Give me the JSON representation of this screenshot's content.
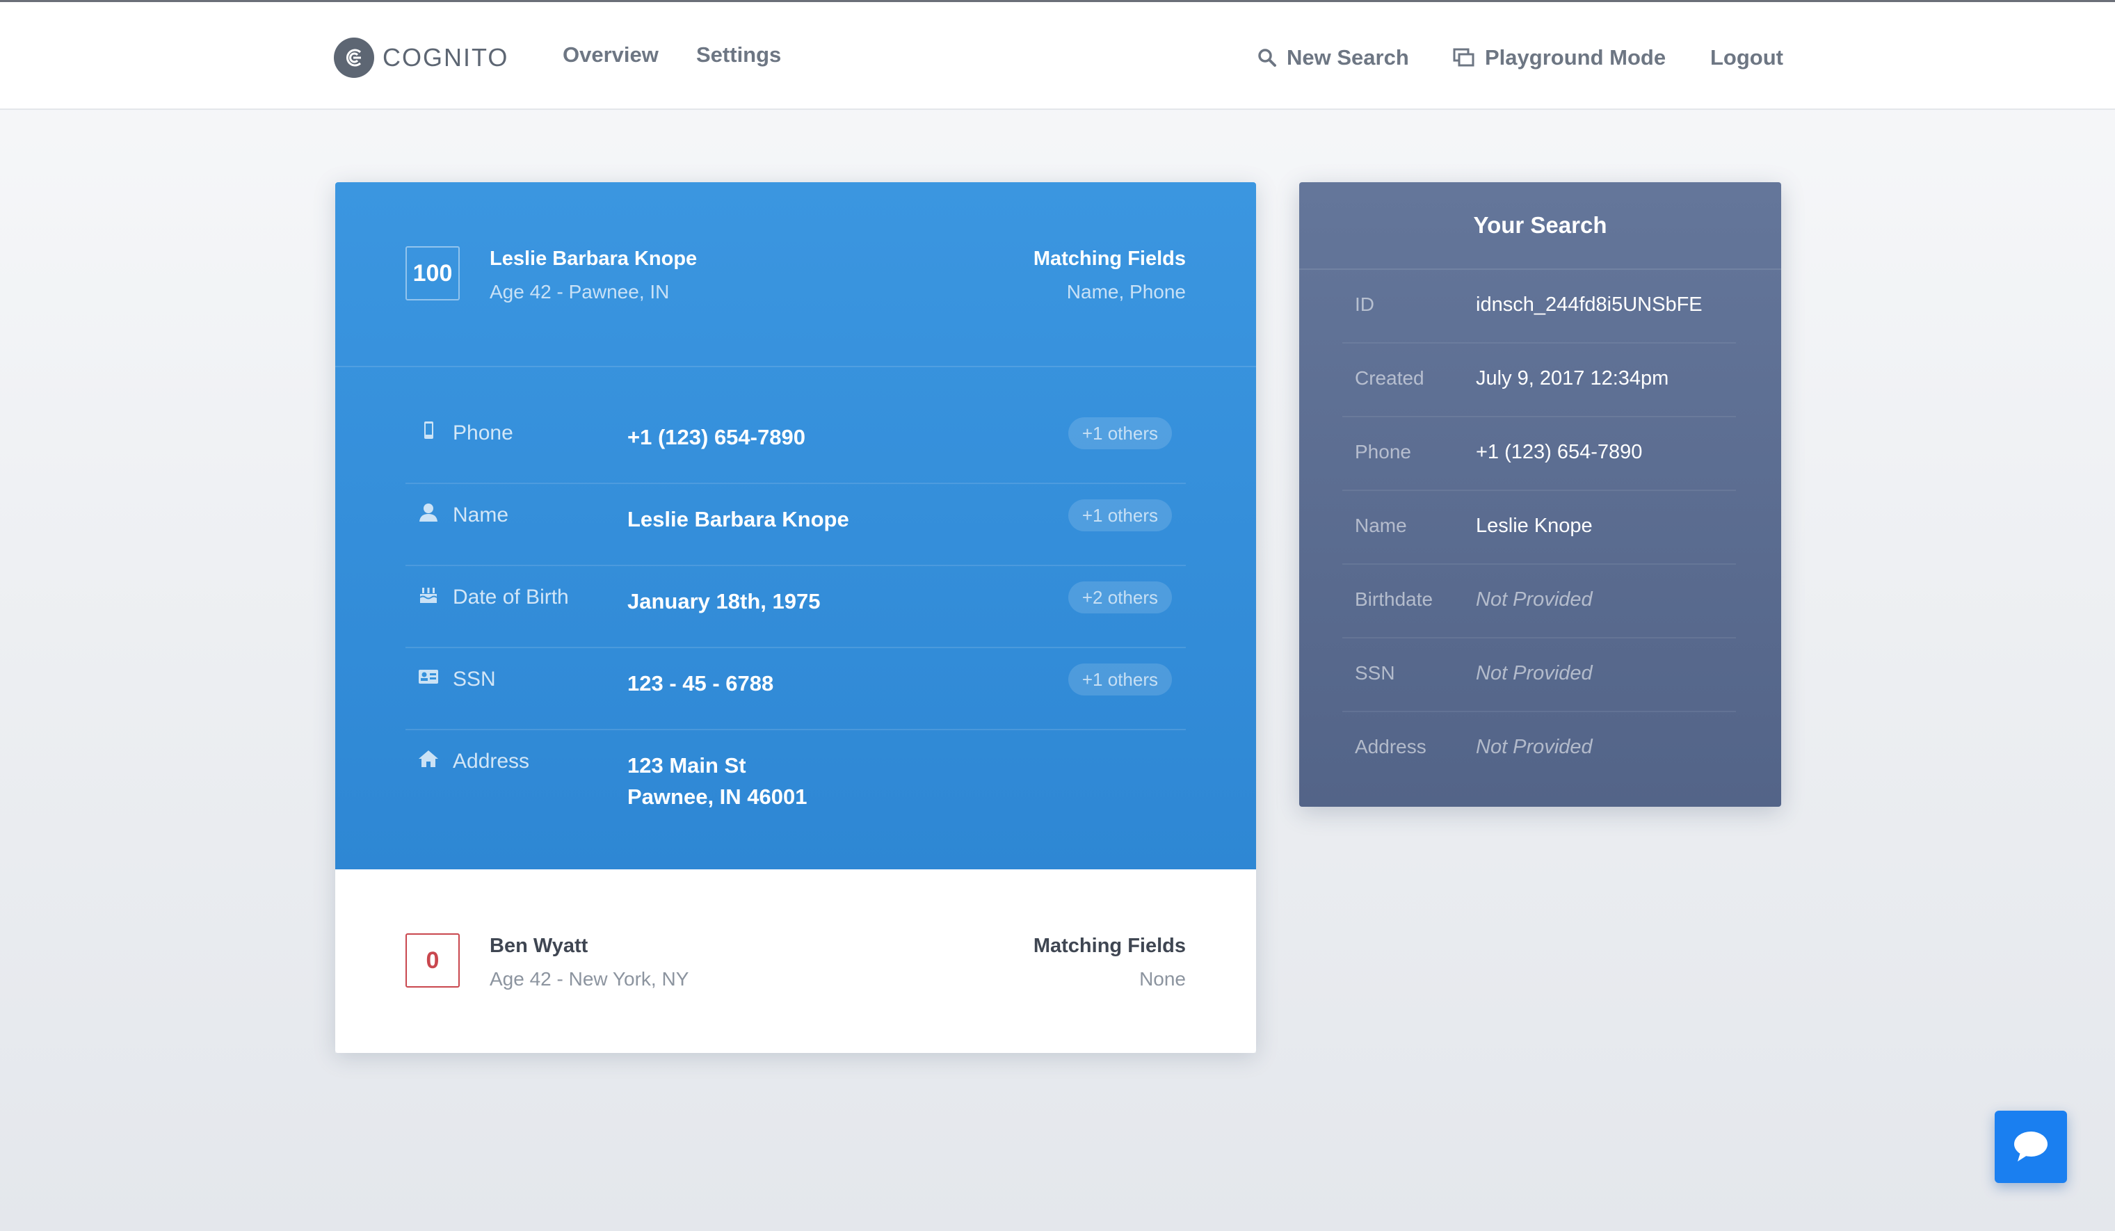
{
  "brand": {
    "name": "COGNITO"
  },
  "nav": {
    "left": [
      {
        "label": "Overview"
      },
      {
        "label": "Settings"
      }
    ],
    "new_search": "New Search",
    "playground": "Playground Mode",
    "logout": "Logout"
  },
  "results": [
    {
      "score": "100",
      "name": "Leslie Barbara Knope",
      "subtitle": "Age 42 - Pawnee, IN",
      "matching_label": "Matching Fields",
      "matching_value": "Name, Phone",
      "fields": [
        {
          "icon": "phone-icon",
          "label": "Phone",
          "value": [
            "+1 (123) 654-7890"
          ],
          "others": "+1 others"
        },
        {
          "icon": "person-icon",
          "label": "Name",
          "value": [
            "Leslie Barbara Knope"
          ],
          "others": "+1 others"
        },
        {
          "icon": "cake-icon",
          "label": "Date of Birth",
          "value": [
            "January 18th, 1975"
          ],
          "others": "+2 others"
        },
        {
          "icon": "id-card-icon",
          "label": "SSN",
          "value": [
            "123 - 45 - 6788"
          ],
          "others": "+1 others"
        },
        {
          "icon": "home-icon",
          "label": "Address",
          "value": [
            "123 Main St",
            "Pawnee, IN 46001"
          ],
          "others": ""
        }
      ]
    },
    {
      "score": "0",
      "name": "Ben Wyatt",
      "subtitle": "Age 42 - New York, NY",
      "matching_label": "Matching Fields",
      "matching_value": "None"
    }
  ],
  "search_panel": {
    "title": "Your Search",
    "rows": [
      {
        "key": "ID",
        "value": "idnsch_244fd8i5UNSbFE",
        "missing": false
      },
      {
        "key": "Created",
        "value": "July 9, 2017 12:34pm",
        "missing": false
      },
      {
        "key": "Phone",
        "value": "+1 (123) 654-7890",
        "missing": false
      },
      {
        "key": "Name",
        "value": "Leslie Knope",
        "missing": false
      },
      {
        "key": "Birthdate",
        "value": "Not Provided",
        "missing": true
      },
      {
        "key": "SSN",
        "value": "Not Provided",
        "missing": true
      },
      {
        "key": "Address",
        "value": "Not Provided",
        "missing": true
      }
    ]
  },
  "colors": {
    "active_card": "#2e87d4",
    "search_panel": "#5b6c90",
    "chat_button": "#1a7ff0",
    "score_bad": "#c9474e"
  }
}
